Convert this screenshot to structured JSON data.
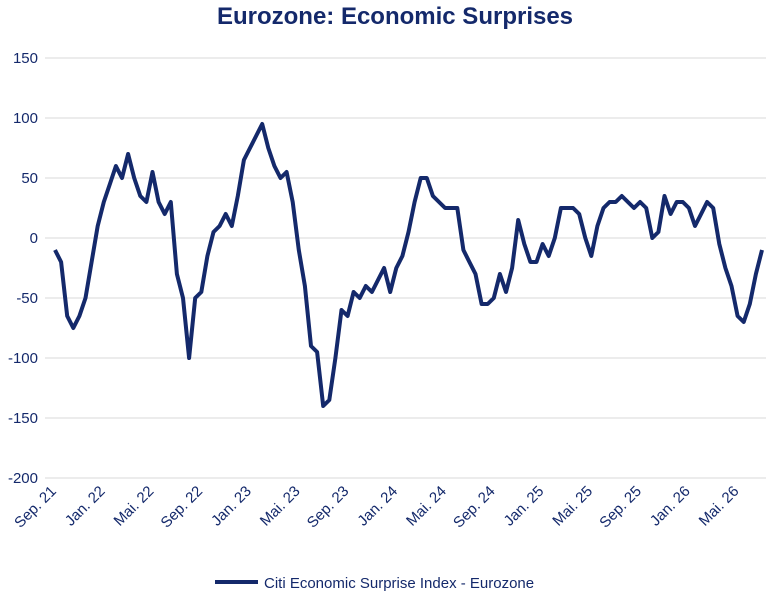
{
  "chart_data": {
    "type": "line",
    "title": "Eurozone: Economic Surprises",
    "categories": [
      "Sep. 21",
      null,
      null,
      null,
      null,
      null,
      null,
      null,
      "Jan. 22",
      null,
      null,
      null,
      null,
      null,
      null,
      null,
      "Mai. 22",
      null,
      null,
      null,
      null,
      null,
      null,
      null,
      "Sep. 22",
      null,
      null,
      null,
      null,
      null,
      null,
      null,
      "Jan. 23",
      null,
      null,
      null,
      null,
      null,
      null,
      null,
      "Mai. 23",
      null,
      null,
      null,
      null,
      null,
      null,
      null,
      "Sep. 23",
      null,
      null,
      null,
      null,
      null,
      null,
      null,
      "Jan. 24",
      null,
      null,
      null,
      null,
      null,
      null,
      null,
      "Mai. 24",
      null,
      null,
      null,
      null,
      null,
      null,
      null,
      "Sep. 24",
      null,
      null,
      null,
      null,
      null,
      null,
      null,
      "Jan. 25",
      null,
      null,
      null,
      null,
      null,
      null,
      null,
      "Mai. 25",
      null,
      null,
      null,
      null,
      null,
      null,
      null,
      "Sep. 25",
      null,
      null,
      null,
      null,
      null,
      null,
      null,
      "Jan. 26",
      null,
      null,
      null,
      null,
      null,
      null,
      null,
      "Mai. 26",
      null,
      null,
      null,
      null
    ],
    "series": [
      {
        "name": "Citi Economic Surprise Index - Eurozone",
        "color": "#14296b",
        "values": [
          -10,
          -20,
          -65,
          -75,
          -65,
          -50,
          -20,
          10,
          30,
          45,
          60,
          50,
          70,
          50,
          35,
          30,
          55,
          30,
          20,
          30,
          -30,
          -50,
          -100,
          -50,
          -45,
          -15,
          5,
          10,
          20,
          10,
          35,
          65,
          75,
          85,
          95,
          75,
          60,
          50,
          55,
          30,
          -10,
          -40,
          -90,
          -95,
          -140,
          -135,
          -100,
          -60,
          -65,
          -45,
          -50,
          -40,
          -45,
          -35,
          -25,
          -45,
          -25,
          -15,
          5,
          30,
          50,
          50,
          35,
          30,
          25,
          25,
          25,
          -10,
          -20,
          -30,
          -55,
          -55,
          -50,
          -30,
          -45,
          -25,
          15,
          -5,
          -20,
          -20,
          -5,
          -15,
          0,
          25,
          25,
          25,
          20,
          0,
          -15,
          10,
          25,
          30,
          30,
          35,
          30,
          25,
          30,
          25,
          0,
          5,
          35,
          20,
          30,
          30,
          25,
          10,
          20,
          30,
          25,
          -5,
          -25,
          -40,
          -65,
          -70,
          -55,
          -30,
          -10
        ]
      }
    ],
    "ylim": [
      -200,
      150
    ],
    "yticks": [
      -200,
      -150,
      -100,
      -50,
      0,
      50,
      100,
      150
    ],
    "grid": true,
    "legend": "bottom"
  }
}
